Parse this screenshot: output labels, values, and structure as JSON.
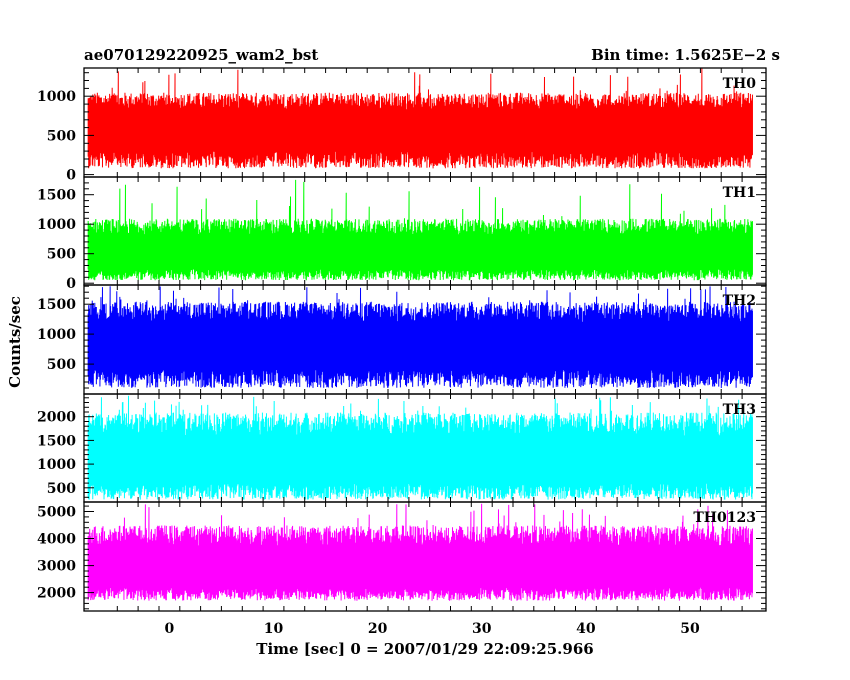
{
  "header": {
    "left": "ae070129220925_wam2_bst",
    "right": "Bin time: 1.5625E−2 s"
  },
  "chart_data": {
    "type": "line",
    "xlabel": "Time [sec] 0 = 2007/01/29 22:09:25.966",
    "ylabel": "Counts/sec",
    "xlim": [
      -8.2,
      57.3
    ],
    "x_ticks": [
      0,
      10,
      20,
      30,
      40,
      50
    ],
    "x_tick_labels": [
      "0",
      "10",
      "20",
      "30",
      "40",
      "50"
    ],
    "data_x_range": [
      -7.8,
      56.0
    ],
    "bin_time": 0.015625,
    "panels": [
      {
        "name": "TH0",
        "color": "#ff0000",
        "ylim": [
          -30,
          1360
        ],
        "yticks": [
          0,
          500,
          1000
        ],
        "ytick_labels": [
          "0",
          "500",
          "1000"
        ],
        "mean": 560,
        "low": 80,
        "high": 1050,
        "spike_max": 1360
      },
      {
        "name": "TH1",
        "color": "#00ff00",
        "ylim": [
          -30,
          1800
        ],
        "yticks": [
          0,
          500,
          1000,
          1500
        ],
        "ytick_labels": [
          "0",
          "500",
          "1000",
          "1500"
        ],
        "mean": 470,
        "low": 50,
        "high": 1100,
        "spike_max": 1760
      },
      {
        "name": "TH2",
        "color": "#0000ff",
        "ylim": [
          0,
          1820
        ],
        "yticks": [
          500,
          1000,
          1500
        ],
        "ytick_labels": [
          "500",
          "1000",
          "1500"
        ],
        "mean": 780,
        "low": 100,
        "high": 1550,
        "spike_max": 1800
      },
      {
        "name": "TH3",
        "color": "#00ffff",
        "ylim": [
          200,
          2480
        ],
        "yticks": [
          500,
          1000,
          1500,
          2000
        ],
        "ytick_labels": [
          "500",
          "1000",
          "1500",
          "2000"
        ],
        "mean": 1000,
        "low": 250,
        "high": 2100,
        "spike_max": 2450
      },
      {
        "name": "TH0123",
        "color": "#ff00ff",
        "ylim": [
          1320,
          5350
        ],
        "yticks": [
          2000,
          3000,
          4000,
          5000
        ],
        "ytick_labels": [
          "2000",
          "3000",
          "4000",
          "5000"
        ],
        "mean": 2800,
        "low": 1700,
        "high": 4500,
        "spike_max": 5300
      }
    ]
  }
}
